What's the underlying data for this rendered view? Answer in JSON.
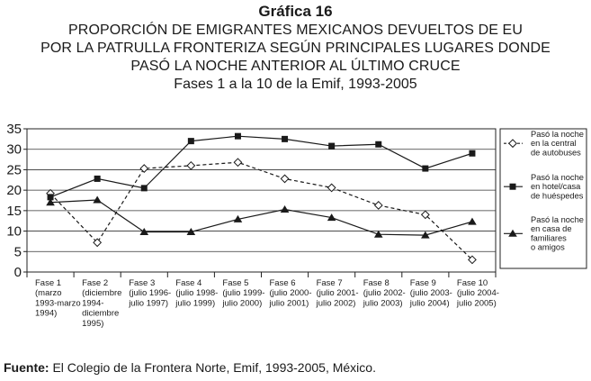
{
  "header": {
    "figure_number": "Gráfica 16",
    "title_lines": [
      "PROPORCIÓN DE EMIGRANTES MEXICANOS DEVUELTOS DE EU",
      "POR LA PATRULLA FRONTERIZA SEGÚN PRINCIPALES LUGARES DONDE",
      "PASÓ LA NOCHE ANTERIOR AL ÚLTIMO CRUCE"
    ],
    "subtitle": "Fases 1 a la 10 de la Emif, 1993-2005"
  },
  "source": {
    "label": "Fuente:",
    "text": " El Colegio de la Frontera Norte, Emif, 1993-2005, México."
  },
  "chart_data": {
    "type": "line",
    "ylim": [
      0,
      35
    ],
    "yticks": [
      0,
      5,
      10,
      15,
      20,
      25,
      30,
      35
    ],
    "grid": "horizontal",
    "legend_position": "right",
    "categories": [
      [
        "Fase 1",
        "(marzo",
        "1993-marzo",
        "1994)"
      ],
      [
        "Fase 2",
        "(diciembre",
        "1994-",
        "diciembre",
        "1995)"
      ],
      [
        "Fase 3",
        "(julio 1996-",
        "julio 1997)"
      ],
      [
        "Fase 4",
        "(julio 1998-",
        "julio 1999)"
      ],
      [
        "Fase 5",
        "(julio 1999-",
        "julio 2000)"
      ],
      [
        "Fase 6",
        "(julio 2000-",
        "julio 2001)"
      ],
      [
        "Fase 7",
        "(julio 2001-",
        "julio 2002)"
      ],
      [
        "Fase 8",
        "(julio 2002-",
        "julio 2003)"
      ],
      [
        "Fase 9",
        "(julio 2003-",
        "julio 2004)"
      ],
      [
        "Fase 10",
        "(julio 2004-",
        "julio 2005)"
      ]
    ],
    "series": [
      {
        "name": "Pasó la noche en la central de autobuses",
        "legend_lines": [
          "Pasó la noche",
          "en la central",
          "de autobuses"
        ],
        "marker": "diamond-open",
        "line": "dashed",
        "color": "#1a1a1a",
        "values": [
          19.2,
          7.2,
          25.3,
          26.0,
          26.8,
          22.8,
          20.6,
          16.3,
          14.0,
          3.0
        ]
      },
      {
        "name": "Pasó la noche en hotel/casa de huéspedes",
        "legend_lines": [
          "Pasó la noche",
          "en hotel/casa",
          "de huéspedes"
        ],
        "marker": "square-filled",
        "line": "solid",
        "color": "#1a1a1a",
        "values": [
          18.3,
          22.8,
          20.5,
          32.0,
          33.2,
          32.5,
          30.8,
          31.2,
          25.3,
          29.0
        ]
      },
      {
        "name": "Pasó la noche en casa de familiares o amigos",
        "legend_lines": [
          "Pasó la noche",
          "en casa de",
          "familiares",
          "o amigos"
        ],
        "marker": "triangle-filled",
        "line": "solid",
        "color": "#1a1a1a",
        "values": [
          17.0,
          17.6,
          9.8,
          9.8,
          12.9,
          15.3,
          13.3,
          9.2,
          9.0,
          12.3
        ]
      }
    ]
  }
}
